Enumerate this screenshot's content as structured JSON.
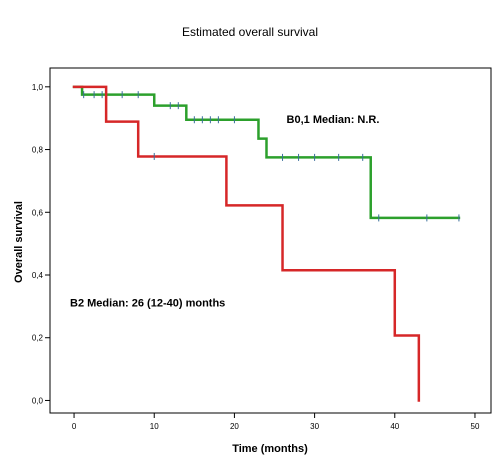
{
  "chart_data": {
    "type": "line",
    "subtype": "kaplan-meier step",
    "title": "Estimated overall survival",
    "xlabel": "Time (months)",
    "ylabel": "Overall survival",
    "xlim": [
      -3,
      52
    ],
    "ylim": [
      -0.04,
      1.06
    ],
    "x_ticks": [
      0,
      10,
      20,
      30,
      40,
      50
    ],
    "x_tick_labels": [
      "0",
      "10",
      "20",
      "30",
      "40",
      "50"
    ],
    "y_ticks": [
      0,
      0.2,
      0.4,
      0.6,
      0.8,
      1.0
    ],
    "y_tick_labels": [
      "0,0",
      "0,2",
      "0,4",
      "0,6",
      "0,8",
      "1,0"
    ],
    "grid": false,
    "legend": "none",
    "series": [
      {
        "name": "B0,1",
        "color": "#2ca02c",
        "step_x": [
          0,
          1,
          10,
          14,
          23,
          24,
          37,
          48
        ],
        "step_y": [
          1.0,
          0.975,
          0.94,
          0.895,
          0.835,
          0.775,
          0.582,
          0.582
        ],
        "censor_x": [
          1.2,
          2.5,
          3.5,
          6,
          8,
          12,
          13,
          15,
          16,
          17,
          18,
          20,
          26,
          28,
          30,
          33,
          36,
          38,
          44,
          48
        ]
      },
      {
        "name": "B2",
        "color": "#d62728",
        "step_x": [
          0,
          4,
          8,
          19,
          26,
          40,
          43,
          43
        ],
        "step_y": [
          1.0,
          0.889,
          0.778,
          0.622,
          0.415,
          0.207,
          0.0,
          0.0
        ],
        "censor_x": [
          10
        ]
      }
    ],
    "annotations": [
      {
        "text": "B0,1   Median: N.R.",
        "x": 26.5,
        "y": 0.885
      },
      {
        "text": "B2   Median: 26 (12-40) months",
        "x": -0.5,
        "y": 0.3
      }
    ]
  }
}
